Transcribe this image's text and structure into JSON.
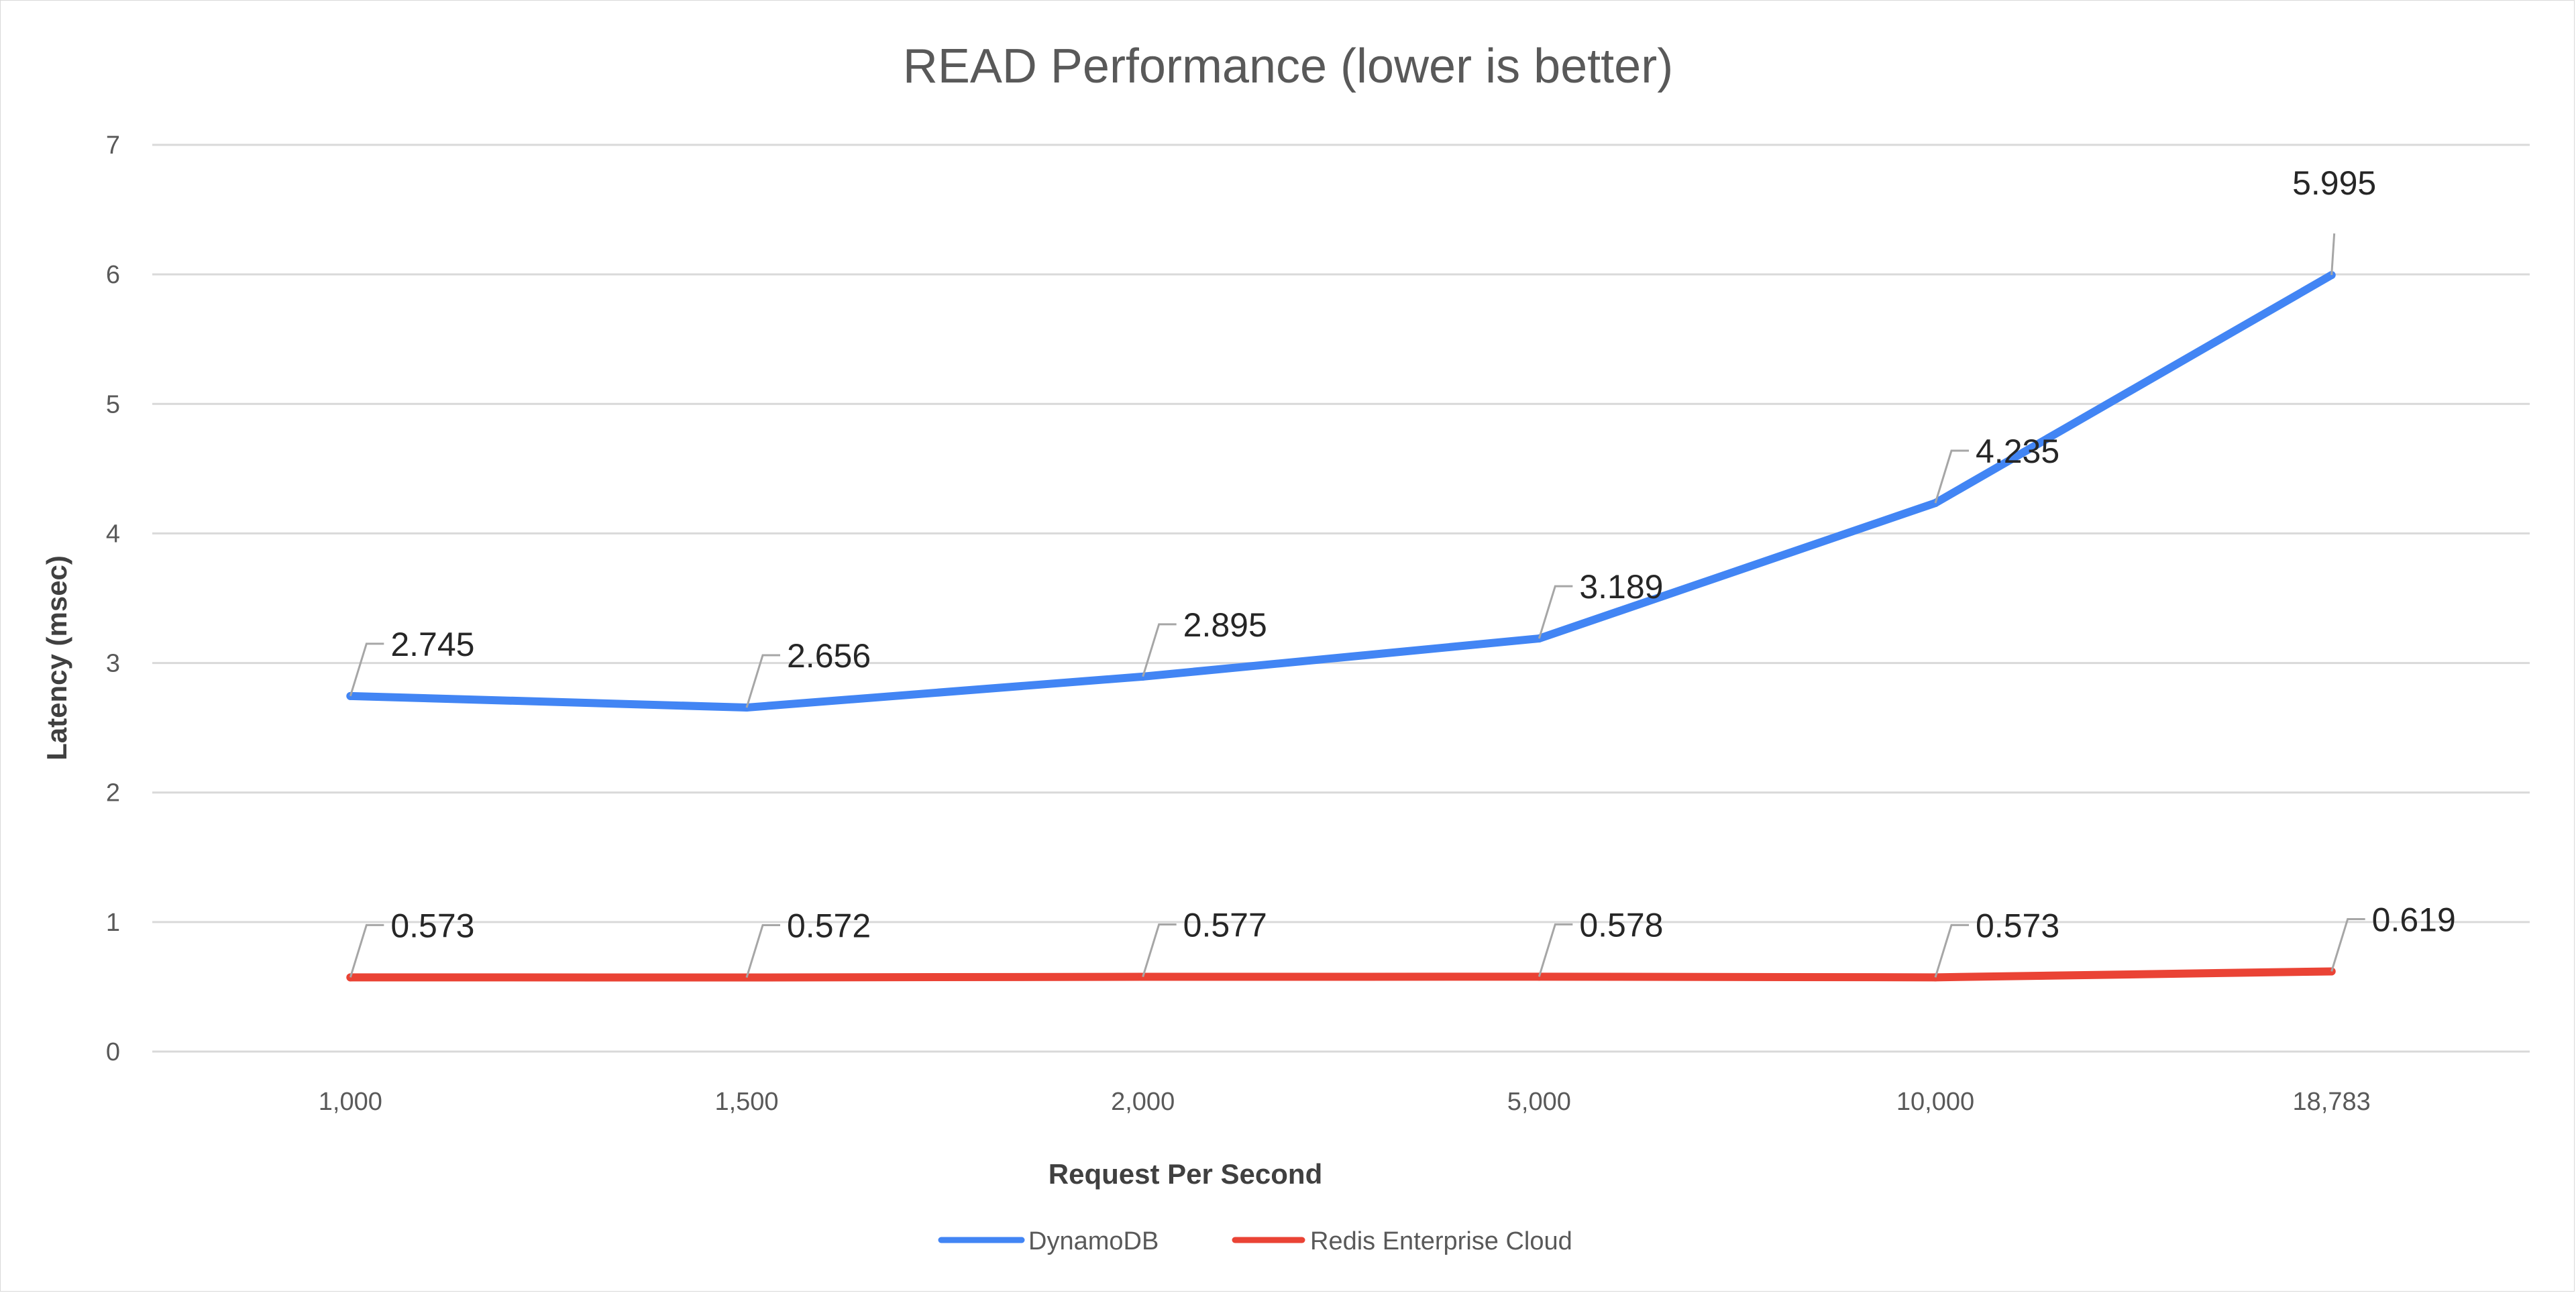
{
  "chart_data": {
    "type": "line",
    "title": "READ Performance (lower is better)",
    "xlabel": "Request Per Second",
    "ylabel": "Latency (msec)",
    "categories": [
      "1,000",
      "1,500",
      "2,000",
      "5,000",
      "10,000",
      "18,783"
    ],
    "ylim": [
      0,
      7
    ],
    "yticks": [
      "0",
      "1",
      "2",
      "3",
      "4",
      "5",
      "6",
      "7"
    ],
    "grid": true,
    "legend_position": "bottom",
    "series": [
      {
        "name": "DynamoDB",
        "color": "#4285f4",
        "values": [
          2.745,
          2.656,
          2.895,
          3.189,
          4.235,
          5.995
        ],
        "labels": [
          "2.745",
          "2.656",
          "2.895",
          "3.189",
          "4.235",
          "5.995"
        ]
      },
      {
        "name": "Redis Enterprise Cloud",
        "color": "#ea4335",
        "values": [
          0.573,
          0.572,
          0.577,
          0.578,
          0.573,
          0.619
        ],
        "labels": [
          "0.573",
          "0.572",
          "0.577",
          "0.578",
          "0.573",
          "0.619"
        ]
      }
    ]
  }
}
